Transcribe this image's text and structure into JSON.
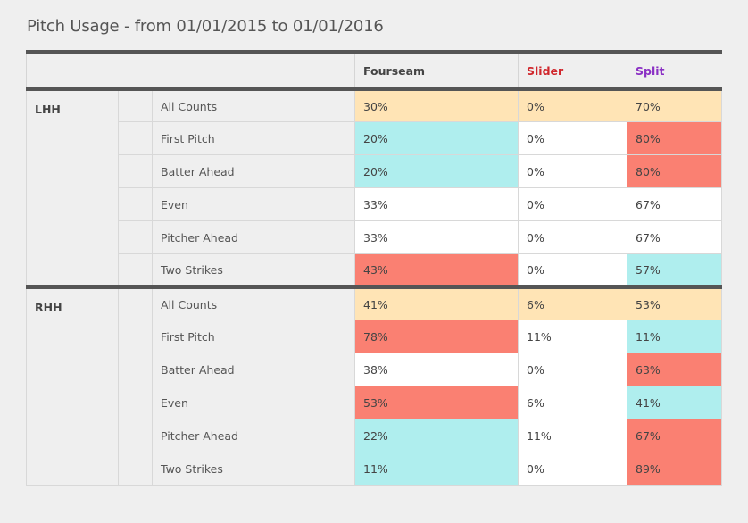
{
  "title": "Pitch Usage - from 01/01/2015 to 01/01/2016",
  "headers": [
    {
      "label": "Fourseam",
      "color": "#444444"
    },
    {
      "label": "Slider",
      "color": "#d0262c"
    },
    {
      "label": "Split",
      "color": "#8a2fc4"
    }
  ],
  "cell_colors": {
    "even": "#ffe4b5",
    "low": "#afeeee",
    "high": "#fa8072",
    "neutral": "#ffffff"
  },
  "groups": [
    {
      "side": "LHH",
      "rows": [
        {
          "count": "All Counts",
          "values": [
            "30%",
            "0%",
            "70%"
          ],
          "shades": [
            "even",
            "even",
            "even"
          ]
        },
        {
          "count": "First Pitch",
          "values": [
            "20%",
            "0%",
            "80%"
          ],
          "shades": [
            "low",
            "neutral",
            "high"
          ]
        },
        {
          "count": "Batter Ahead",
          "values": [
            "20%",
            "0%",
            "80%"
          ],
          "shades": [
            "low",
            "neutral",
            "high"
          ]
        },
        {
          "count": "Even",
          "values": [
            "33%",
            "0%",
            "67%"
          ],
          "shades": [
            "neutral",
            "neutral",
            "neutral"
          ]
        },
        {
          "count": "Pitcher Ahead",
          "values": [
            "33%",
            "0%",
            "67%"
          ],
          "shades": [
            "neutral",
            "neutral",
            "neutral"
          ]
        },
        {
          "count": "Two Strikes",
          "values": [
            "43%",
            "0%",
            "57%"
          ],
          "shades": [
            "high",
            "neutral",
            "low"
          ]
        }
      ]
    },
    {
      "side": "RHH",
      "rows": [
        {
          "count": "All Counts",
          "values": [
            "41%",
            "6%",
            "53%"
          ],
          "shades": [
            "even",
            "even",
            "even"
          ]
        },
        {
          "count": "First Pitch",
          "values": [
            "78%",
            "11%",
            "11%"
          ],
          "shades": [
            "high",
            "neutral",
            "low"
          ]
        },
        {
          "count": "Batter Ahead",
          "values": [
            "38%",
            "0%",
            "63%"
          ],
          "shades": [
            "neutral",
            "neutral",
            "high"
          ]
        },
        {
          "count": "Even",
          "values": [
            "53%",
            "6%",
            "41%"
          ],
          "shades": [
            "high",
            "neutral",
            "low"
          ]
        },
        {
          "count": "Pitcher Ahead",
          "values": [
            "22%",
            "11%",
            "67%"
          ],
          "shades": [
            "low",
            "neutral",
            "high"
          ]
        },
        {
          "count": "Two Strikes",
          "values": [
            "11%",
            "0%",
            "89%"
          ],
          "shades": [
            "low",
            "neutral",
            "high"
          ]
        }
      ]
    }
  ]
}
